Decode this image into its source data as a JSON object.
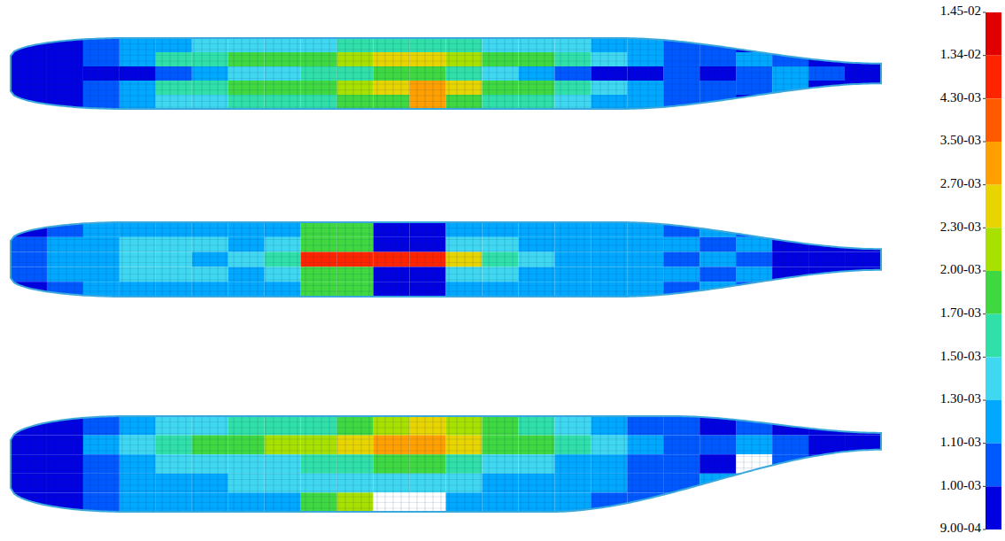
{
  "chart_data": {
    "type": "heatmap",
    "panels": [
      {
        "cells": [
          [
            0.00095,
            0.00095,
            0.00105,
            0.0012,
            0.0012,
            0.0014,
            0.0014,
            0.0014,
            0.0014,
            0.0016,
            0.0016,
            0.0016,
            0.0016,
            0.0014,
            0.0014,
            0.0014,
            0.0012,
            0.0012,
            0.00105,
            0.00105,
            0.00095,
            0.00105,
            0.00095,
            0.00095
          ],
          [
            0.00095,
            0.00095,
            0.00105,
            0.0012,
            0.0016,
            0.0016,
            0.00185,
            0.00185,
            0.00185,
            0.0021,
            0.0025,
            0.0025,
            0.0021,
            0.00185,
            0.00185,
            0.0016,
            0.0014,
            0.0012,
            0.00105,
            0.00105,
            0.0012,
            0.00105,
            0.00095,
            0.00095
          ],
          [
            0.00095,
            0.00095,
            0.00095,
            0.00095,
            0.00105,
            0.0012,
            0.0014,
            0.0014,
            0.0016,
            0.0016,
            0.00185,
            0.00185,
            0.0016,
            0.0014,
            0.0012,
            0.00105,
            0.00095,
            0.00095,
            0.00105,
            0.00095,
            0.00105,
            0.0012,
            0.00105,
            0.00095
          ],
          [
            0.00095,
            0.00095,
            0.00105,
            0.0012,
            0.0016,
            0.0016,
            0.00185,
            0.00185,
            0.00185,
            0.0021,
            0.0025,
            0.003,
            0.0025,
            0.00185,
            0.00185,
            0.0016,
            0.0014,
            0.0012,
            0.00105,
            0.00105,
            0.00105,
            0.0012,
            0.00095,
            0.00095
          ],
          [
            0.00095,
            0.00095,
            0.00105,
            0.0012,
            0.0014,
            0.0014,
            0.0016,
            0.0016,
            0.0016,
            0.00185,
            0.00185,
            0.003,
            0.00185,
            0.0016,
            0.0016,
            0.0014,
            0.0012,
            0.0012,
            0.00105,
            0.00105,
            0.00095,
            0.00105,
            0.00095,
            0.00095
          ]
        ]
      },
      {
        "cells": [
          [
            0.00095,
            0.00105,
            0.0012,
            0.0012,
            0.0012,
            0.0012,
            0.0012,
            0.0012,
            0.00185,
            0.00185,
            0.00095,
            0.00095,
            0.0012,
            0.0012,
            0.0012,
            0.0012,
            0.0012,
            0.0012,
            0.00105,
            0.0012,
            0.00105,
            0.00095,
            0.00095,
            0.00095
          ],
          [
            0.00105,
            0.0012,
            0.0012,
            0.0014,
            0.0014,
            0.0014,
            0.0012,
            0.0014,
            0.00185,
            0.00185,
            0.00095,
            0.00095,
            0.0014,
            0.0014,
            0.0012,
            0.0012,
            0.0012,
            0.0012,
            0.0012,
            0.00105,
            0.0012,
            0.00095,
            0.00095,
            0.00095
          ],
          [
            0.00105,
            0.0012,
            0.0012,
            0.0014,
            0.0014,
            0.0012,
            0.0014,
            0.0016,
            0.005,
            0.005,
            0.005,
            0.005,
            0.0025,
            0.0016,
            0.0014,
            0.0012,
            0.0012,
            0.0012,
            0.00105,
            0.0012,
            0.00105,
            0.00095,
            0.00095,
            0.00095
          ],
          [
            0.00105,
            0.0012,
            0.0012,
            0.0014,
            0.0014,
            0.0014,
            0.0012,
            0.0014,
            0.00185,
            0.00185,
            0.00095,
            0.00095,
            0.0014,
            0.0014,
            0.0012,
            0.0012,
            0.0012,
            0.0012,
            0.0012,
            0.00105,
            0.0012,
            0.00095,
            0.00095,
            0.00095
          ],
          [
            0.00095,
            0.00105,
            0.0012,
            0.0012,
            0.0012,
            0.0012,
            0.0012,
            0.0012,
            0.00185,
            0.00185,
            0.00095,
            0.00095,
            0.0012,
            0.0012,
            0.0012,
            0.0012,
            0.0012,
            0.0012,
            0.00105,
            0.0012,
            0.00105,
            0.00095,
            0.00095,
            0.00095
          ]
        ]
      },
      {
        "cells": [
          [
            0.00095,
            0.00095,
            0.00105,
            0.0012,
            0.0014,
            0.0014,
            0.0016,
            0.0016,
            0.0016,
            0.00185,
            0.0021,
            0.0025,
            0.0021,
            0.00185,
            0.0016,
            0.0014,
            0.0012,
            0.00105,
            0.00105,
            0.00095,
            0.00105,
            0.00095,
            0.00095,
            0.00095
          ],
          [
            0.00095,
            0.00095,
            0.0012,
            0.0014,
            0.0016,
            0.00185,
            0.00185,
            0.0021,
            0.0021,
            0.0025,
            0.003,
            0.003,
            0.0025,
            0.00185,
            0.00185,
            0.0016,
            0.0014,
            0.0012,
            0.00105,
            0.00105,
            0.0012,
            0.00105,
            0.00095,
            0.00095
          ],
          [
            0.00095,
            0.00095,
            0.00105,
            0.0012,
            0.0014,
            0.0014,
            0.0014,
            0.0014,
            0.0016,
            0.0016,
            0.00185,
            0.00185,
            0.0016,
            0.0014,
            0.0014,
            0.0012,
            0.0012,
            0.00105,
            0.00105,
            0.00095,
            null,
            0.00105,
            0.00095,
            0.00095
          ],
          [
            0.00095,
            0.00095,
            0.00105,
            0.0012,
            0.0012,
            0.0012,
            0.0014,
            0.0014,
            0.0014,
            0.0014,
            0.0014,
            0.0014,
            0.0014,
            0.0012,
            0.0012,
            0.0012,
            0.0012,
            0.00105,
            0.00105,
            0.0012,
            0.00105,
            0.00095,
            0.00095,
            0.00095
          ],
          [
            0.00095,
            0.00095,
            0.00105,
            0.0012,
            0.0012,
            0.0012,
            0.0012,
            0.0012,
            0.00185,
            0.0021,
            null,
            null,
            0.0012,
            0.0012,
            0.0012,
            0.0012,
            0.00105,
            0.00105,
            0.00105,
            0.00095,
            0.00095,
            0.00095,
            0.00095,
            0.00095
          ]
        ]
      }
    ],
    "colorbar": {
      "ticks": [
        {
          "value": 0.0145,
          "label": "1.45-02"
        },
        {
          "value": 0.0134,
          "label": "1.34-02"
        },
        {
          "value": 0.0043,
          "label": "4.30-03"
        },
        {
          "value": 0.0035,
          "label": "3.50-03"
        },
        {
          "value": 0.0027,
          "label": "2.70-03"
        },
        {
          "value": 0.0023,
          "label": "2.30-03"
        },
        {
          "value": 0.002,
          "label": "2.00-03"
        },
        {
          "value": 0.0017,
          "label": "1.70-03"
        },
        {
          "value": 0.0015,
          "label": "1.50-03"
        },
        {
          "value": 0.0013,
          "label": "1.30-03"
        },
        {
          "value": 0.0011,
          "label": "1.10-03"
        },
        {
          "value": 0.001,
          "label": "1.00-03"
        },
        {
          "value": 0.0009,
          "label": "9.00-04"
        }
      ],
      "colors": [
        "#e00000",
        "#ff2400",
        "#ff5a00",
        "#ffa000",
        "#e8d400",
        "#a8e000",
        "#40d840",
        "#30e0a8",
        "#40d8f0",
        "#00a8ff",
        "#0058ff",
        "#0000e0"
      ]
    }
  }
}
